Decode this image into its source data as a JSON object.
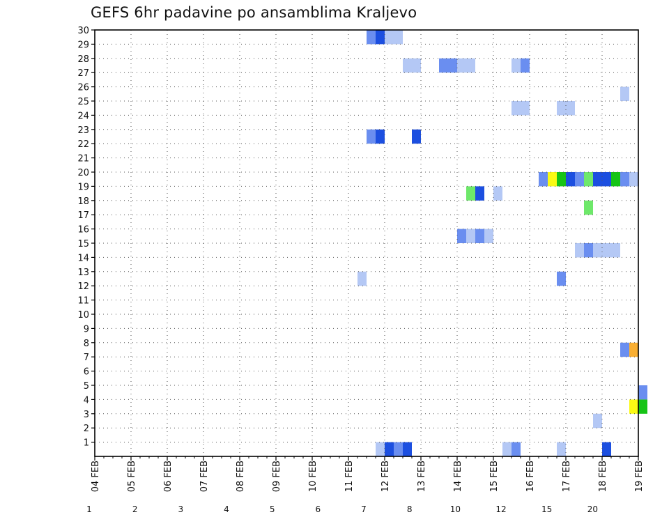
{
  "chart_data": {
    "type": "heatmap",
    "title": "GEFS 6hr padavine po ansamblima Kraljevo",
    "xlabel": "",
    "ylabel": "",
    "x_ticks": [
      "04 FEB",
      "05 FEB",
      "06 FEB",
      "07 FEB",
      "08 FEB",
      "09 FEB",
      "10 FEB",
      "11 FEB",
      "12 FEB",
      "13 FEB",
      "14 FEB",
      "15 FEB",
      "16 FEB",
      "17 FEB",
      "18 FEB",
      "19 FEB"
    ],
    "y_ticks": [
      "1",
      "2",
      "3",
      "4",
      "5",
      "6",
      "7",
      "8",
      "9",
      "10",
      "11",
      "12",
      "13",
      "14",
      "15",
      "16",
      "17",
      "18",
      "19",
      "20",
      "21",
      "22",
      "23",
      "24",
      "25",
      "26",
      "27",
      "28",
      "29",
      "30"
    ],
    "xlim": [
      "04 FEB",
      "19 FEB"
    ],
    "ylim": [
      0,
      30
    ],
    "grid": true,
    "colorbar": {
      "labels": [
        "1",
        "2",
        "3",
        "4",
        "5",
        "6",
        "7",
        "8",
        "10",
        "12",
        "15",
        "20"
      ],
      "colors": [
        "#b4c8f5",
        "#6a8ef0",
        "#1c4fe0",
        "#6ee86a",
        "#16c416",
        "#0a7a0a",
        "#fafa14",
        "#faaf32",
        "#f5781e",
        "#dc3c1e",
        "#b41414",
        "#5a0a0a"
      ]
    },
    "cells": [
      {
        "x": "11 FEB 12z",
        "y": 30,
        "level": 2
      },
      {
        "x": "11 FEB 18z",
        "y": 30,
        "level": 3
      },
      {
        "x": "12 FEB 00z",
        "y": 30,
        "level": 1
      },
      {
        "x": "12 FEB 06z",
        "y": 30,
        "level": 1
      },
      {
        "x": "12 FEB 12z",
        "y": 28,
        "level": 1
      },
      {
        "x": "12 FEB 18z",
        "y": 28,
        "level": 1
      },
      {
        "x": "13 FEB 12z",
        "y": 28,
        "level": 2
      },
      {
        "x": "13 FEB 18z",
        "y": 28,
        "level": 2
      },
      {
        "x": "14 FEB 00z",
        "y": 28,
        "level": 1
      },
      {
        "x": "14 FEB 06z",
        "y": 28,
        "level": 1
      },
      {
        "x": "15 FEB 12z",
        "y": 28,
        "level": 1
      },
      {
        "x": "15 FEB 18z",
        "y": 28,
        "level": 2
      },
      {
        "x": "18 FEB 12z",
        "y": 26,
        "level": 1
      },
      {
        "x": "15 FEB 12z",
        "y": 25,
        "level": 1
      },
      {
        "x": "15 FEB 18z",
        "y": 25,
        "level": 1
      },
      {
        "x": "16 FEB 18z",
        "y": 25,
        "level": 1
      },
      {
        "x": "17 FEB 00z",
        "y": 25,
        "level": 1
      },
      {
        "x": "11 FEB 12z",
        "y": 23,
        "level": 2
      },
      {
        "x": "11 FEB 18z",
        "y": 23,
        "level": 3
      },
      {
        "x": "12 FEB 18z",
        "y": 23,
        "level": 3
      },
      {
        "x": "16 FEB 06z",
        "y": 20,
        "level": 2
      },
      {
        "x": "16 FEB 12z",
        "y": 20,
        "level": 7
      },
      {
        "x": "16 FEB 18z",
        "y": 20,
        "level": 5
      },
      {
        "x": "17 FEB 00z",
        "y": 20,
        "level": 3
      },
      {
        "x": "17 FEB 06z",
        "y": 20,
        "level": 2
      },
      {
        "x": "17 FEB 12z",
        "y": 20,
        "level": 4
      },
      {
        "x": "17 FEB 18z",
        "y": 20,
        "level": 3
      },
      {
        "x": "18 FEB 00z",
        "y": 20,
        "level": 3
      },
      {
        "x": "18 FEB 06z",
        "y": 20,
        "level": 5
      },
      {
        "x": "18 FEB 12z",
        "y": 20,
        "level": 2
      },
      {
        "x": "18 FEB 18z",
        "y": 20,
        "level": 1
      },
      {
        "x": "14 FEB 06z",
        "y": 19,
        "level": 4
      },
      {
        "x": "14 FEB 12z",
        "y": 19,
        "level": 3
      },
      {
        "x": "15 FEB 00z",
        "y": 19,
        "level": 1
      },
      {
        "x": "17 FEB 12z",
        "y": 18,
        "level": 4
      },
      {
        "x": "14 FEB 00z",
        "y": 16,
        "level": 2
      },
      {
        "x": "14 FEB 06z",
        "y": 16,
        "level": 1
      },
      {
        "x": "14 FEB 12z",
        "y": 16,
        "level": 2
      },
      {
        "x": "14 FEB 18z",
        "y": 16,
        "level": 1
      },
      {
        "x": "17 FEB 06z",
        "y": 15,
        "level": 1
      },
      {
        "x": "17 FEB 12z",
        "y": 15,
        "level": 2
      },
      {
        "x": "17 FEB 18z",
        "y": 15,
        "level": 1
      },
      {
        "x": "18 FEB 00z",
        "y": 15,
        "level": 1
      },
      {
        "x": "18 FEB 06z",
        "y": 15,
        "level": 1
      },
      {
        "x": "11 FEB 06z",
        "y": 13,
        "level": 1
      },
      {
        "x": "16 FEB 18z",
        "y": 13,
        "level": 2
      },
      {
        "x": "18 FEB 12z",
        "y": 8,
        "level": 2
      },
      {
        "x": "18 FEB 18z",
        "y": 8,
        "level": 8
      },
      {
        "x": "19 FEB 00z",
        "y": 5,
        "level": 2
      },
      {
        "x": "18 FEB 18z",
        "y": 4,
        "level": 7
      },
      {
        "x": "19 FEB 00z",
        "y": 4,
        "level": 5
      },
      {
        "x": "17 FEB 18z",
        "y": 3,
        "level": 1
      },
      {
        "x": "11 FEB 18z",
        "y": 1,
        "level": 1
      },
      {
        "x": "12 FEB 00z",
        "y": 1,
        "level": 3
      },
      {
        "x": "12 FEB 06z",
        "y": 1,
        "level": 2
      },
      {
        "x": "12 FEB 12z",
        "y": 1,
        "level": 3
      },
      {
        "x": "15 FEB 06z",
        "y": 1,
        "level": 1
      },
      {
        "x": "15 FEB 12z",
        "y": 1,
        "level": 2
      },
      {
        "x": "16 FEB 18z",
        "y": 1,
        "level": 1
      },
      {
        "x": "18 FEB 00z",
        "y": 1,
        "level": 3
      }
    ]
  }
}
